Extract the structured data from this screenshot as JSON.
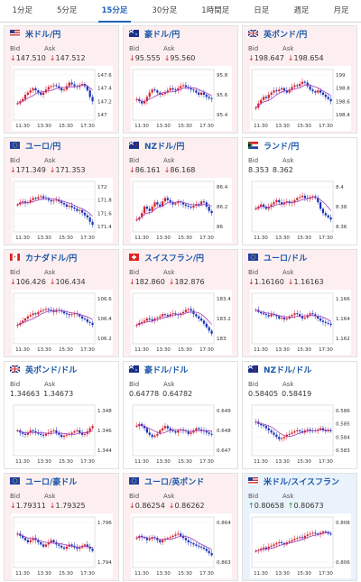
{
  "tabs": [
    "1分足",
    "5分足",
    "15分足",
    "30分足",
    "1時間足",
    "日足",
    "週足",
    "月足"
  ],
  "active_tab": 2,
  "cards": [
    {
      "pair": "米ドル/円",
      "flag": "us-jp",
      "bg": "pink",
      "dir": "down",
      "bid": "147.510",
      "ask": "147.512",
      "y_ticks": [
        "147.6",
        "147.4",
        "147.2",
        "147"
      ],
      "x_ticks": [
        "11:30",
        "13:30",
        "15:30",
        "17:30"
      ]
    },
    {
      "pair": "豪ドル/円",
      "flag": "au-jp",
      "bg": "pink",
      "dir": "down",
      "bid": "95.555",
      "ask": "95.560",
      "y_ticks": [
        "95.8",
        "95.6",
        "95.4"
      ],
      "x_ticks": [
        "11:30",
        "13:30",
        "15:30",
        "17:30"
      ]
    },
    {
      "pair": "英ポンド/円",
      "flag": "gb-jp",
      "bg": "pink",
      "dir": "down",
      "bid": "198.647",
      "ask": "198.654",
      "y_ticks": [
        "199",
        "198.8",
        "198.6",
        "198.4"
      ],
      "x_ticks": [
        "11:30",
        "13:30",
        "15:30",
        "17:30"
      ]
    },
    {
      "pair": "ユーロ/円",
      "flag": "eu-jp",
      "bg": "pink",
      "dir": "down",
      "bid": "171.349",
      "ask": "171.353",
      "y_ticks": [
        "172",
        "171.8",
        "171.6",
        "171.4"
      ],
      "x_ticks": [
        "11:30",
        "13:30",
        "15:30",
        "17:30"
      ]
    },
    {
      "pair": "NZドル/円",
      "flag": "nz-jp",
      "bg": "pink",
      "dir": "down",
      "bid": "86.161",
      "ask": "86.168",
      "y_ticks": [
        "86.4",
        "86.2",
        "86"
      ],
      "x_ticks": [
        "11:30",
        "13:30",
        "15:30",
        "17:30"
      ]
    },
    {
      "pair": "ランド/円",
      "flag": "za-jp",
      "bg": "white",
      "dir": "none",
      "bid": "8.353",
      "ask": "8.362",
      "y_ticks": [
        "8.4",
        "8.38",
        "8.36"
      ],
      "x_ticks": [
        "11:30",
        "13:30",
        "15:30",
        "17:30"
      ]
    },
    {
      "pair": "カナダドル/円",
      "flag": "ca-jp",
      "bg": "pink",
      "dir": "down",
      "bid": "106.426",
      "ask": "106.434",
      "y_ticks": [
        "106.6",
        "106.4",
        "106.2"
      ],
      "x_ticks": [
        "11:30",
        "13:30",
        "15:30",
        "17:30"
      ]
    },
    {
      "pair": "スイスフラン/円",
      "flag": "ch-jp",
      "bg": "pink",
      "dir": "down",
      "bid": "182.860",
      "ask": "182.876",
      "y_ticks": [
        "183.4",
        "183.2",
        "183"
      ],
      "x_ticks": [
        "11:30",
        "13:30",
        "15:30",
        "17:30"
      ]
    },
    {
      "pair": "ユーロ/ドル",
      "flag": "eu-us",
      "bg": "pink",
      "dir": "down",
      "bid": "1.16160",
      "ask": "1.16163",
      "y_ticks": [
        "1.166",
        "1.164",
        "1.162"
      ],
      "x_ticks": [
        "11:30",
        "13:30",
        "15:30",
        "17:30"
      ]
    },
    {
      "pair": "英ポンド/ドル",
      "flag": "gb-us",
      "bg": "white",
      "dir": "none",
      "bid": "1.34663",
      "ask": "1.34673",
      "y_ticks": [
        "1.348",
        "1.346",
        "1.344"
      ],
      "x_ticks": [
        "11:30",
        "13:30",
        "15:30",
        "17:30"
      ]
    },
    {
      "pair": "豪ドル/ドル",
      "flag": "au-us",
      "bg": "white",
      "dir": "none",
      "bid": "0.64778",
      "ask": "0.64782",
      "y_ticks": [
        "0.649",
        "0.648",
        "0.647"
      ],
      "x_ticks": [
        "11:30",
        "13:30",
        "15:30",
        "17:30"
      ]
    },
    {
      "pair": "NZドル/ドル",
      "flag": "nz-us",
      "bg": "white",
      "dir": "none",
      "bid": "0.58405",
      "ask": "0.58419",
      "y_ticks": [
        "0.586",
        "0.585",
        "0.584",
        "0.583"
      ],
      "x_ticks": [
        "11:30",
        "13:30",
        "15:30",
        "17:30"
      ]
    },
    {
      "pair": "ユーロ/豪ドル",
      "flag": "eu-au",
      "bg": "pink",
      "dir": "down",
      "bid": "1.79311",
      "ask": "1.79325",
      "y_ticks": [
        "1.796",
        "1.794"
      ],
      "x_ticks": [
        "11:30",
        "13:30",
        "15:30",
        "17:30"
      ]
    },
    {
      "pair": "ユーロ/英ポンド",
      "flag": "eu-gb",
      "bg": "pink",
      "dir": "down",
      "bid": "0.86254",
      "ask": "0.86262",
      "y_ticks": [
        "0.864",
        "0.863"
      ],
      "x_ticks": [
        "11:30",
        "13:30",
        "15:30",
        "17:30"
      ]
    },
    {
      "pair": "米ドル/スイスフラン",
      "flag": "us-ch",
      "bg": "blue",
      "dir": "up",
      "bid": "0.80658",
      "ask": "0.80673",
      "y_ticks": [
        "0.808",
        "0.806"
      ],
      "x_ticks": [
        "11:30",
        "13:30",
        "15:30",
        "17:30"
      ]
    }
  ],
  "labels": {
    "bid": "Bid",
    "ask": "Ask"
  },
  "colors": {
    "up": "#d6202c",
    "down": "#1a33b8",
    "ma": "#a43fbd",
    "down_arrow": "#d6202c",
    "up_arrow": "#1a9a2a"
  }
}
